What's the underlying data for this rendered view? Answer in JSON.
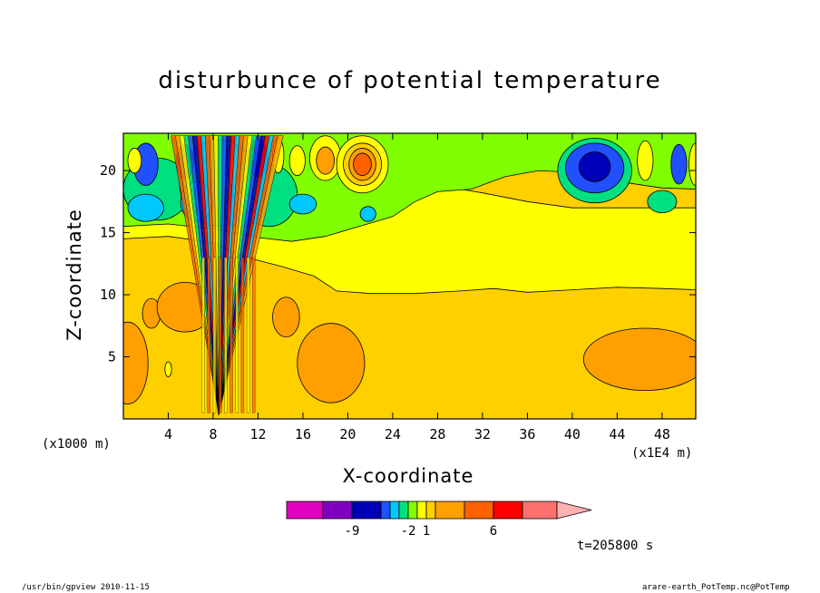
{
  "chart_data": {
    "type": "heatmap",
    "title": "disturbunce of potential temperature",
    "xlabel": "X-coordinate",
    "ylabel": "Z-coordinate",
    "x_unit_label": "(x1E4 m)",
    "y_unit_label": "(x1000 m)",
    "x_ticks": [
      4,
      8,
      12,
      16,
      20,
      24,
      28,
      32,
      36,
      40,
      44,
      48
    ],
    "y_ticks": [
      5,
      10,
      15,
      20
    ],
    "xlim": [
      0,
      51
    ],
    "ylim": [
      0,
      23
    ],
    "time_label": "t=205800 s",
    "colorbar": {
      "ticks": [
        {
          "label": "-9",
          "index": 2
        },
        {
          "label": "-2",
          "index": 6
        },
        {
          "label": "1",
          "index": 8
        },
        {
          "label": "6",
          "index": 11
        }
      ],
      "colors": [
        "#e000c0",
        "#8000c0",
        "#0000b8",
        "#2050ff",
        "#00c8ff",
        "#00e080",
        "#80ff00",
        "#ffff00",
        "#ffd000",
        "#ffa000",
        "#ff6000",
        "#ff0000",
        "#ff7070",
        "#ffb0b0"
      ]
    },
    "field": {
      "background_level": "#ffd000",
      "regions": [
        {
          "level": "#ffff00",
          "desc": "upper yellow band",
          "x": [
            10,
            45
          ],
          "z": [
            10,
            17
          ]
        },
        {
          "level": "#ffff00",
          "desc": "yellow tongue",
          "x": [
            28,
            44
          ],
          "z": [
            12.5,
            16.5
          ]
        },
        {
          "level": "#80ff00",
          "desc": "green upper layer",
          "x": [
            0,
            51
          ],
          "z": [
            15,
            23
          ]
        },
        {
          "level": "#ffa000",
          "desc": "orange cell",
          "x": [
            16,
            22
          ],
          "z": [
            1,
            7
          ]
        },
        {
          "level": "#ffa000",
          "desc": "orange cell",
          "x": [
            41,
            51
          ],
          "z": [
            1,
            7
          ]
        },
        {
          "level": "#ffa000",
          "desc": "orange cell",
          "x": [
            0,
            2
          ],
          "z": [
            1,
            7
          ]
        },
        {
          "level": "#ff6000",
          "desc": "warm cell",
          "x": [
            20,
            23
          ],
          "z": [
            18.5,
            22.5
          ]
        },
        {
          "level": "#0000b8",
          "desc": "cold cell",
          "x": [
            39,
            45
          ],
          "z": [
            18,
            22
          ]
        }
      ]
    },
    "footer_left": "/usr/bin/gpview  2010-11-15",
    "footer_right": "arare-earth_PotTemp.nc@PotTemp"
  }
}
